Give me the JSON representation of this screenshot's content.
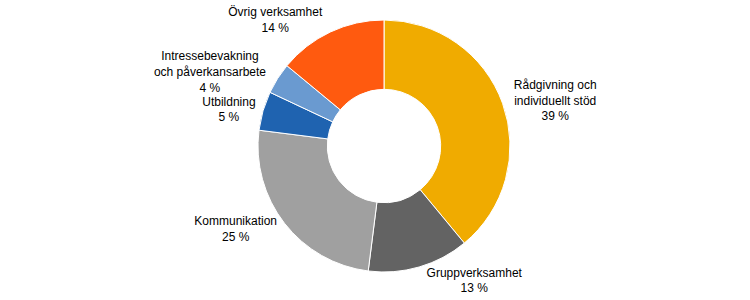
{
  "chart_data": {
    "type": "pie",
    "categories": [
      "Rådgivning och individuellt stöd",
      "Gruppverksamhet",
      "Kommunikation",
      "Utbildning",
      "Intressebevakning och påverkansarbete",
      "Övrig verksamhet"
    ],
    "values": [
      39,
      13,
      25,
      5,
      4,
      14
    ],
    "value_labels": [
      "39 %",
      "13 %",
      "25 %",
      "5 %",
      "4 %",
      "14 %"
    ],
    "colors": [
      "#F0AB00",
      "#636363",
      "#A0A0A0",
      "#1F63B0",
      "#6A9AD0",
      "#FF5A0F"
    ],
    "data_labels": true
  }
}
